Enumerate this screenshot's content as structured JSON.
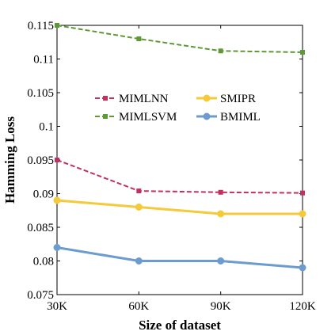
{
  "chart_data": {
    "type": "line",
    "title": "",
    "xlabel": "Size of dataset",
    "ylabel": "Hamming Loss",
    "categories": [
      "30K",
      "60K",
      "90K",
      "120K"
    ],
    "ylim": [
      0.075,
      0.115
    ],
    "yticks": [
      "0.075",
      "0.08",
      "0.085",
      "0.09",
      "0.095",
      "0.1",
      "0.105",
      "0.11",
      "0.115"
    ],
    "grid": false,
    "legend_position": "upper-center",
    "series": [
      {
        "name": "MIMLNN",
        "values": [
          0.095,
          0.0904,
          0.0902,
          0.0901
        ],
        "color": "#c2305e",
        "dash": "dashed",
        "marker": "square"
      },
      {
        "name": "SMIPR",
        "values": [
          0.089,
          0.088,
          0.087,
          0.087
        ],
        "color": "#f5c93a",
        "dash": "solid",
        "marker": "circle"
      },
      {
        "name": "MIMLSVM",
        "values": [
          0.115,
          0.113,
          0.1112,
          0.111
        ],
        "color": "#5e9a34",
        "dash": "dashed",
        "marker": "square"
      },
      {
        "name": "BMIML",
        "values": [
          0.082,
          0.08,
          0.08,
          0.079
        ],
        "color": "#6c9bcf",
        "dash": "solid",
        "marker": "circle"
      }
    ]
  }
}
